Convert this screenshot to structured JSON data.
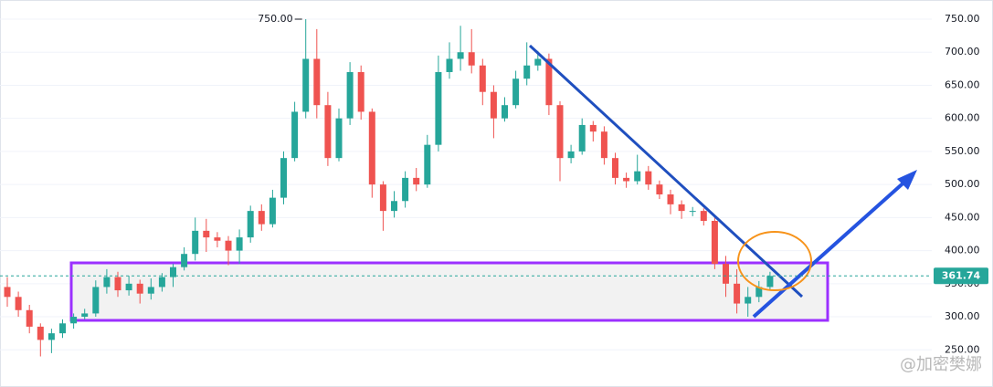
{
  "chart_data": {
    "type": "candlestick",
    "open": [
      345,
      330,
      310,
      285,
      265,
      275,
      290,
      300,
      305,
      345,
      360,
      340,
      350,
      335,
      345,
      360,
      375,
      395,
      430,
      420,
      415,
      400,
      420,
      460,
      440,
      480,
      540,
      610,
      690,
      620,
      540,
      600,
      670,
      610,
      500,
      460,
      475,
      510,
      500,
      560,
      670,
      690,
      700,
      680,
      640,
      600,
      620,
      660,
      680,
      690,
      620,
      540,
      550,
      590,
      580,
      540,
      510,
      505,
      520,
      500,
      485,
      470,
      460,
      460,
      445,
      380,
      350,
      320,
      330,
      345
    ],
    "high": [
      360,
      338,
      318,
      290,
      282,
      296,
      305,
      312,
      355,
      372,
      368,
      362,
      356,
      358,
      366,
      380,
      405,
      450,
      448,
      428,
      422,
      432,
      468,
      470,
      492,
      550,
      625,
      750,
      735,
      640,
      615,
      685,
      680,
      615,
      505,
      490,
      520,
      525,
      575,
      695,
      715,
      740,
      735,
      690,
      650,
      632,
      672,
      715,
      702,
      698,
      626,
      560,
      600,
      596,
      588,
      548,
      518,
      545,
      528,
      506,
      492,
      476,
      466,
      464,
      450,
      392,
      372,
      345,
      354,
      368
    ],
    "low": [
      315,
      300,
      275,
      240,
      245,
      268,
      282,
      296,
      300,
      335,
      330,
      332,
      320,
      326,
      338,
      345,
      370,
      385,
      398,
      405,
      378,
      380,
      412,
      430,
      435,
      470,
      535,
      600,
      600,
      528,
      535,
      590,
      598,
      480,
      430,
      450,
      465,
      490,
      495,
      550,
      660,
      672,
      668,
      620,
      570,
      595,
      615,
      650,
      672,
      605,
      505,
      532,
      545,
      565,
      530,
      500,
      495,
      500,
      492,
      478,
      455,
      448,
      452,
      438,
      372,
      330,
      305,
      300,
      322,
      340
    ],
    "close": [
      330,
      310,
      285,
      265,
      275,
      290,
      300,
      305,
      345,
      360,
      340,
      350,
      335,
      345,
      360,
      375,
      395,
      430,
      420,
      415,
      400,
      420,
      460,
      440,
      480,
      540,
      610,
      690,
      620,
      540,
      600,
      670,
      610,
      500,
      460,
      475,
      510,
      500,
      560,
      670,
      690,
      700,
      680,
      640,
      600,
      620,
      660,
      680,
      690,
      620,
      540,
      550,
      590,
      580,
      540,
      510,
      505,
      520,
      500,
      485,
      470,
      460,
      460,
      445,
      380,
      350,
      320,
      330,
      345,
      361.74
    ],
    "up_color": "#26a69a",
    "down_color": "#ef5350",
    "ylim": [
      220,
      779
    ],
    "yticks": [
      {
        "value": 250,
        "label": "250.00"
      },
      {
        "value": 300,
        "label": "300.00"
      },
      {
        "value": 350,
        "label": "350.00"
      },
      {
        "value": 400,
        "label": "400.00"
      },
      {
        "value": 450,
        "label": "450.00"
      },
      {
        "value": 500,
        "label": "500.00"
      },
      {
        "value": 550,
        "label": "550.00"
      },
      {
        "value": 600,
        "label": "600.00"
      },
      {
        "value": 650,
        "label": "650.00"
      },
      {
        "value": 700,
        "label": "700.00"
      },
      {
        "value": 750,
        "label": "750.00"
      }
    ],
    "grid": true,
    "current_price": 361.74,
    "annotations": [
      {
        "value": 750,
        "label": "750.00"
      }
    ],
    "watermark": "@加密樊娜"
  }
}
